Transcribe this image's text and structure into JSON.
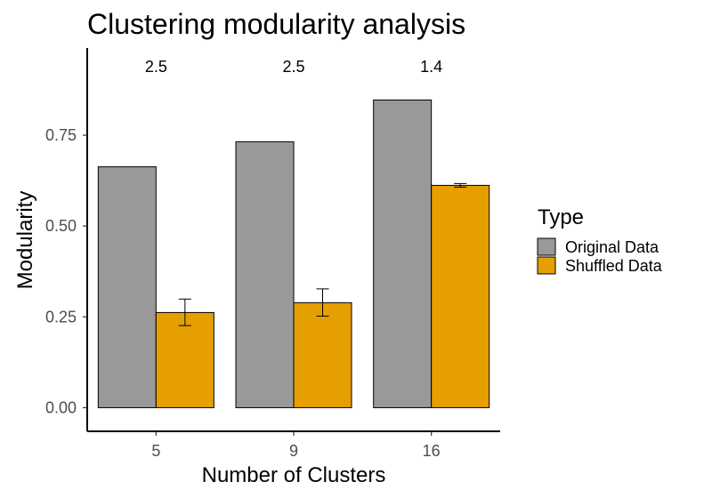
{
  "chart_data": {
    "type": "bar",
    "title": "Clustering modularity analysis",
    "xlabel": "Number of Clusters",
    "ylabel": "Modularity",
    "categories": [
      "5",
      "9",
      "16"
    ],
    "ylim": [
      -0.065,
      0.99
    ],
    "yticks": [
      0.0,
      0.25,
      0.5,
      0.75
    ],
    "ytick_labels": [
      "0.00",
      "0.25",
      "0.50",
      "0.75"
    ],
    "annotations": [
      "2.5",
      "2.5",
      "1.4"
    ],
    "grid": false,
    "legend": {
      "title": "Type",
      "position": "right"
    },
    "series": [
      {
        "name": "Original Data",
        "color": "#999999",
        "values": [
          0.663,
          0.732,
          0.847
        ]
      },
      {
        "name": "Shuffled Data",
        "color": "#e69f00",
        "values": [
          0.262,
          0.289,
          0.612
        ],
        "error_low": [
          0.226,
          0.252,
          0.607
        ],
        "error_high": [
          0.299,
          0.327,
          0.617
        ]
      }
    ]
  }
}
